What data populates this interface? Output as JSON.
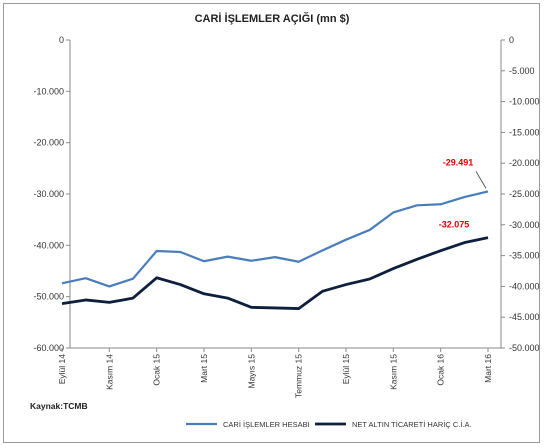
{
  "chart_data": {
    "type": "line",
    "title": "CARİ İŞLEMLER AÇIĞI (mn $)",
    "source": "Kaynak:TCMB",
    "x_tick_labels": [
      "Eylül 14",
      "Kasım 14",
      "Ocak 15",
      "Mart 15",
      "Mayıs 15",
      "Temmuz 15",
      "Eylül 15",
      "Kasım 15",
      "Ocak 16",
      "Mart 16"
    ],
    "left_axis": {
      "ylim": [
        -60000,
        0
      ],
      "ticks": [
        "0",
        "-10.000",
        "-20.000",
        "-30.000",
        "-40.000",
        "-50.000",
        "-60.000"
      ]
    },
    "right_axis": {
      "ylim": [
        -50000,
        0
      ],
      "ticks": [
        "0",
        "-5.000",
        "-10.000",
        "-15.000",
        "-20.000",
        "-25.000",
        "-30.000",
        "-35.000",
        "-40.000",
        "-45.000",
        "-50.000"
      ]
    },
    "grid": false,
    "legend_position": "bottom",
    "series": [
      {
        "name": "CARİ İŞLEMLER HESABI",
        "axis": "left",
        "color": "#4a7ebb",
        "values": [
          -47400,
          -46400,
          -48000,
          -46500,
          -41100,
          -41300,
          -43100,
          -42200,
          -43000,
          -42300,
          -43200,
          -41000,
          -38900,
          -37000,
          -33600,
          -32200,
          -32000,
          -30600,
          -29491
        ]
      },
      {
        "name": "NET ALTIN TİCARETİ HARİÇ C.İ.A.",
        "axis": "right",
        "color": "#0d1f3c",
        "values": [
          -42800,
          -42200,
          -42600,
          -41900,
          -38600,
          -39700,
          -41200,
          -41900,
          -43400,
          -43500,
          -43600,
          -40800,
          -39700,
          -38800,
          -37100,
          -35600,
          -34200,
          -32900,
          -32075
        ]
      }
    ],
    "annotations": [
      {
        "series": 0,
        "label": "-29.491"
      },
      {
        "series": 1,
        "label": "-32.075"
      }
    ]
  }
}
